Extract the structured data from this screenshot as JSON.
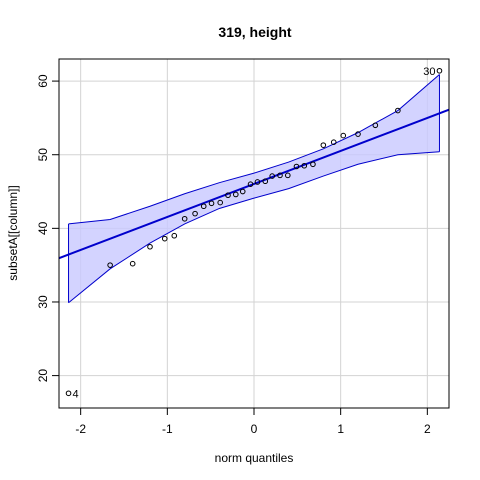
{
  "chart_data": {
    "type": "scatter",
    "title": "319, height",
    "xlabel": "norm quantiles",
    "ylabel": "subsetA[[column]]",
    "xlim": [
      -2.25,
      2.25
    ],
    "ylim": [
      15.6,
      63.0
    ],
    "xticks": [
      -2,
      -1,
      0,
      1,
      2
    ],
    "yticks": [
      20,
      30,
      40,
      50,
      60
    ],
    "grid": true,
    "colors": {
      "points": "#000000",
      "fit_line": "#0000cc",
      "band_fill": "#c8c8ff",
      "band_edge": "#0000cc",
      "grid": "#d3d3d3"
    },
    "points": [
      {
        "x": -2.14,
        "y": 17.6
      },
      {
        "x": -1.66,
        "y": 35.0
      },
      {
        "x": -1.4,
        "y": 35.2
      },
      {
        "x": -1.2,
        "y": 37.5
      },
      {
        "x": -1.03,
        "y": 38.6
      },
      {
        "x": -0.92,
        "y": 39.0
      },
      {
        "x": -0.8,
        "y": 41.3
      },
      {
        "x": -0.68,
        "y": 42.0
      },
      {
        "x": -0.58,
        "y": 43.0
      },
      {
        "x": -0.49,
        "y": 43.4
      },
      {
        "x": -0.39,
        "y": 43.5
      },
      {
        "x": -0.3,
        "y": 44.5
      },
      {
        "x": -0.21,
        "y": 44.6
      },
      {
        "x": -0.13,
        "y": 45.0
      },
      {
        "x": -0.04,
        "y": 46.0
      },
      {
        "x": 0.04,
        "y": 46.3
      },
      {
        "x": 0.13,
        "y": 46.4
      },
      {
        "x": 0.21,
        "y": 47.1
      },
      {
        "x": 0.3,
        "y": 47.2
      },
      {
        "x": 0.39,
        "y": 47.2
      },
      {
        "x": 0.49,
        "y": 48.4
      },
      {
        "x": 0.58,
        "y": 48.5
      },
      {
        "x": 0.68,
        "y": 48.7
      },
      {
        "x": 0.8,
        "y": 51.3
      },
      {
        "x": 0.92,
        "y": 51.7
      },
      {
        "x": 1.03,
        "y": 52.6
      },
      {
        "x": 1.2,
        "y": 52.8
      },
      {
        "x": 1.4,
        "y": 54.0
      },
      {
        "x": 1.66,
        "y": 56.0
      },
      {
        "x": 2.14,
        "y": 61.4
      }
    ],
    "point_labels": [
      {
        "text": "4",
        "x": -2.14,
        "y": 17.6,
        "side": "right"
      },
      {
        "text": "30",
        "x": 2.14,
        "y": 61.4,
        "side": "left"
      }
    ],
    "fit_line": {
      "intercept": 46.03,
      "slope": 4.48
    },
    "confidence_band": {
      "x": [
        -2.14,
        -1.66,
        -1.2,
        -0.8,
        -0.4,
        0.0,
        0.4,
        0.8,
        1.2,
        1.66,
        2.14
      ],
      "upper": [
        40.6,
        41.2,
        43.0,
        44.7,
        46.2,
        47.5,
        49.0,
        50.8,
        53.0,
        56.0,
        60.9
      ],
      "lower": [
        29.9,
        34.5,
        38.0,
        40.6,
        42.7,
        44.1,
        45.4,
        47.1,
        48.7,
        50.0,
        50.4
      ]
    }
  }
}
